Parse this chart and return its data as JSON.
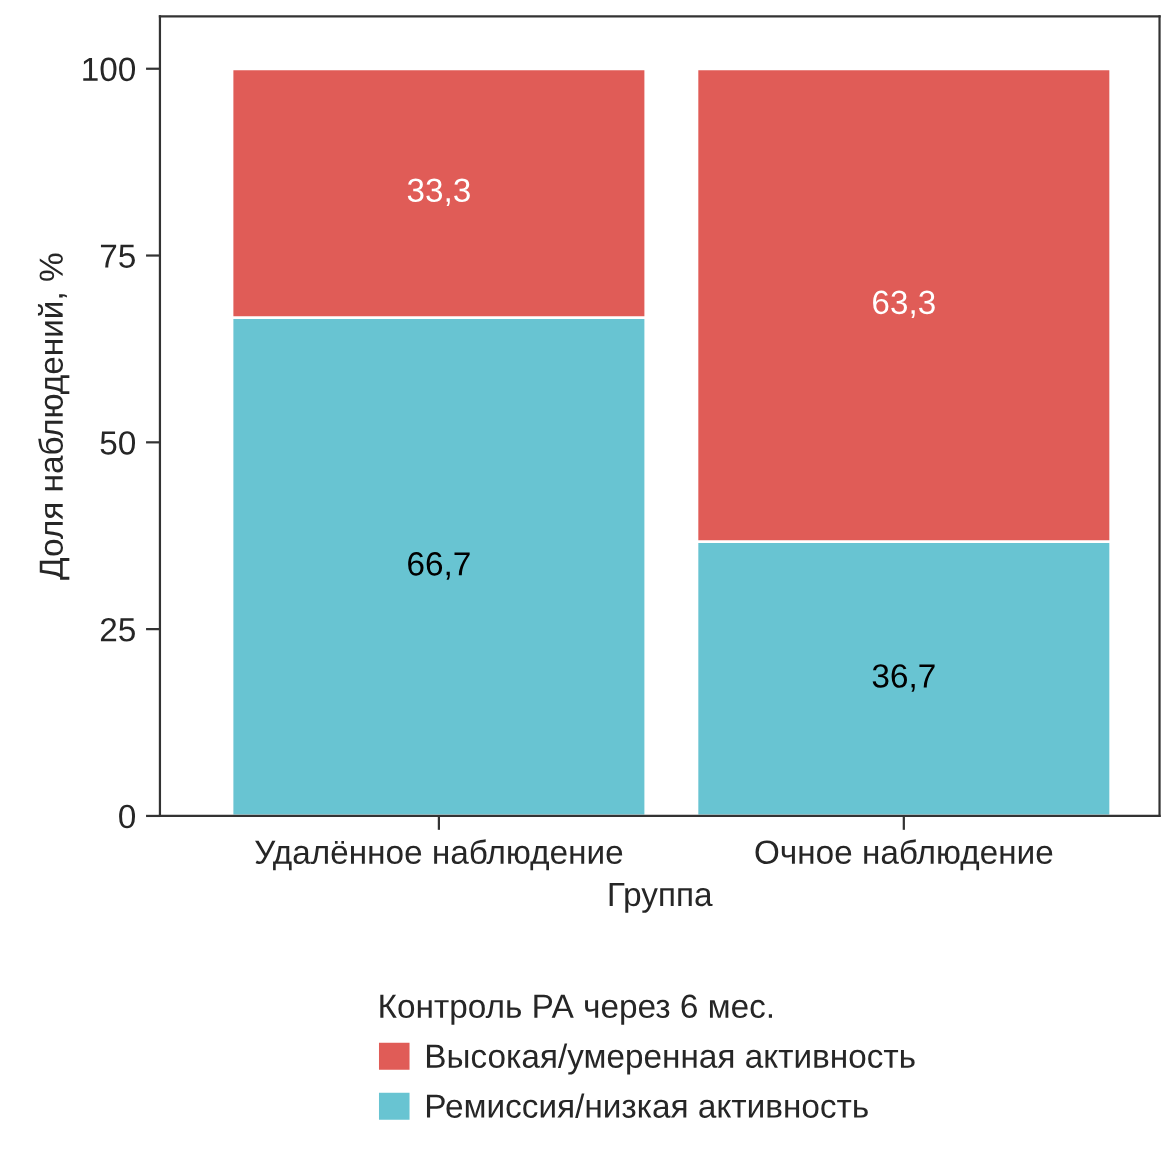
{
  "chart_data": {
    "type": "bar",
    "stacked": true,
    "categories": [
      "Удалённое наблюдение",
      "Очное наблюдение"
    ],
    "xlabel": "Группа",
    "ylabel": "Доля наблюдений, %",
    "legend_title": "Контроль РА через 6 мес.",
    "series": [
      {
        "name": "Ремиссия/низкая активность",
        "color": "#68c4d2",
        "values": [
          66.7,
          36.7
        ],
        "value_labels": [
          "66,7",
          "36,7"
        ]
      },
      {
        "name": "Высокая/умеренная активность",
        "color": "#e05c57",
        "values": [
          33.3,
          63.3
        ],
        "value_labels": [
          "33,3",
          "63,3"
        ]
      }
    ],
    "ylim": [
      0,
      107
    ],
    "yticks": [
      0,
      25,
      50,
      75,
      100
    ],
    "grid": false,
    "legend": "bottom"
  }
}
